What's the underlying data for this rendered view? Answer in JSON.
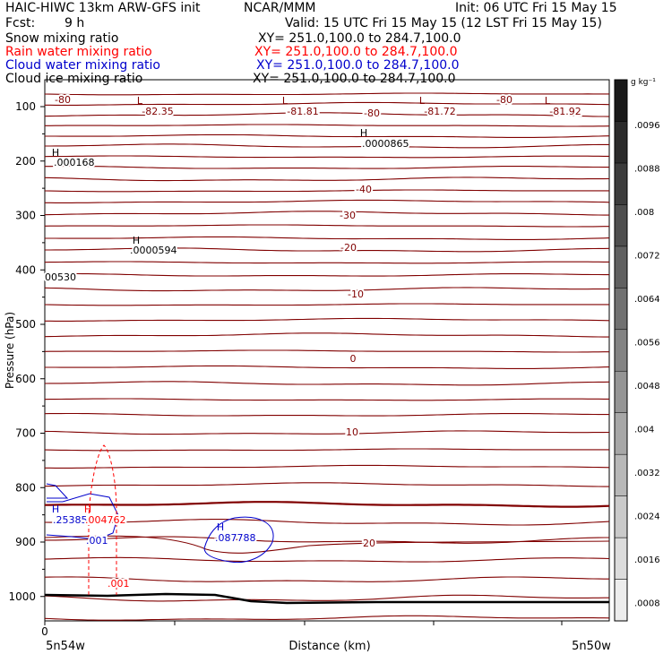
{
  "header": {
    "title": "HAIC-HIWC 13km ARW-GFS init",
    "org": "NCAR/MMM",
    "init": "Init: 06 UTC Fri 15 May 15",
    "fcst_label": "Fcst:",
    "fcst_value": "9 h",
    "valid": "Valid: 15 UTC Fri 15 May 15 (12 LST Fri 15 May 15)"
  },
  "fields": [
    {
      "name": "Snow mixing ratio",
      "xy": "XY= 251.0,100.0 to 284.7,100.0",
      "color": "#000000"
    },
    {
      "name": "Rain water mixing ratio",
      "xy": "XY= 251.0,100.0 to 284.7,100.0",
      "color": "#ff0000"
    },
    {
      "name": "Cloud water mixing ratio",
      "xy": "XY= 251.0,100.0 to 284.7,100.0",
      "color": "#0000cc"
    },
    {
      "name": "Cloud ice mixing ratio",
      "xy": "XY= 251.0,100.0 to 284.7,100.0",
      "color": "#000000"
    }
  ],
  "chart_data": {
    "type": "contour",
    "xlabel": "Distance (km)",
    "ylabel": "Pressure (hPa)",
    "x_ticks": [
      "0"
    ],
    "x_start_label": "5n54w",
    "x_end_label": "5n50w",
    "y_ticks": [
      100,
      200,
      300,
      400,
      500,
      600,
      700,
      800,
      900,
      1000
    ],
    "ylim": [
      1050,
      50
    ],
    "temperature_contours": {
      "color": "#800000",
      "labeled_levels": [
        {
          "value": -80,
          "labels": [
            "-80",
            "-80",
            "-80"
          ]
        },
        {
          "value": -40,
          "labels": [
            "-40"
          ]
        },
        {
          "value": -30,
          "labels": [
            "-30"
          ]
        },
        {
          "value": -20,
          "labels": [
            "-20"
          ]
        },
        {
          "value": -10,
          "labels": [
            "-10"
          ]
        },
        {
          "value": 0,
          "labels": [
            "0"
          ]
        },
        {
          "value": 10,
          "labels": [
            "10"
          ]
        },
        {
          "value": 20,
          "labels": [
            "20"
          ]
        }
      ],
      "minima_labels": [
        "-82.35",
        "-81.81",
        "-81.72",
        "-81.92"
      ]
    },
    "annotations": [
      {
        "symbol": "H",
        "value": ".0000865",
        "color": "#000000"
      },
      {
        "symbol": "H",
        "value": ".000168",
        "color": "#000000"
      },
      {
        "symbol": "H",
        "value": ".0000594",
        "color": "#000000"
      },
      {
        "symbol": "",
        "value": "00530",
        "color": "#000000"
      },
      {
        "symbol": "H",
        "value": ".253853",
        "color": "#0000cc"
      },
      {
        "symbol": "H",
        "value": ".004762",
        "color": "#ff0000"
      },
      {
        "symbol": "H",
        "value": ".087788",
        "color": "#0000cc"
      },
      {
        "symbol": "",
        "value": ".001",
        "color": "#0000cc"
      },
      {
        "symbol": "",
        "value": ".001",
        "color": "#ff0000"
      }
    ],
    "colorbar": {
      "unit": "g kg⁻¹",
      "ticks": [
        ".0096",
        ".0088",
        ".008",
        ".0072",
        ".0064",
        ".0056",
        ".0048",
        ".004",
        ".0032",
        ".0024",
        ".0016",
        ".0008"
      ],
      "levels": [
        0.0008,
        0.0016,
        0.0024,
        0.0032,
        0.004,
        0.0048,
        0.0056,
        0.0064,
        0.0072,
        0.008,
        0.0088,
        0.0096,
        0.0104
      ]
    }
  }
}
